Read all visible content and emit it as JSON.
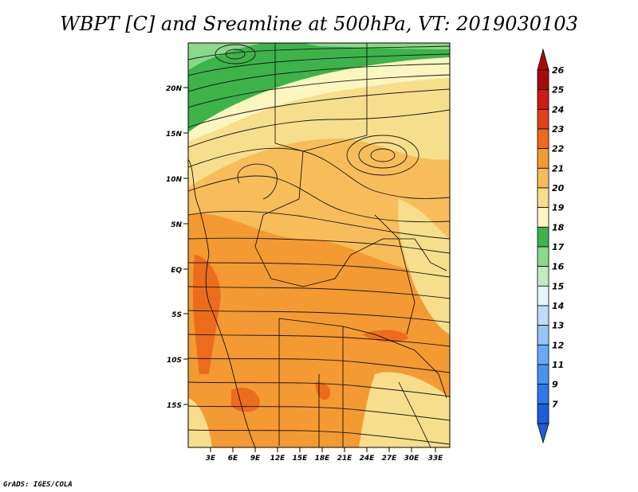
{
  "title": "WBPT [C] and Sreamline at 500hPa, VT: 2019030103",
  "credit": "GrADS: IGES/COLA",
  "map": {
    "lon_labels": [
      "3E",
      "6E",
      "9E",
      "12E",
      "15E",
      "18E",
      "21E",
      "24E",
      "27E",
      "30E",
      "33E"
    ],
    "lat_labels": [
      "20N",
      "15N",
      "10N",
      "5N",
      "EQ",
      "5S",
      "10S",
      "15S"
    ]
  },
  "colorbar": {
    "labels": [
      "7",
      "9",
      "11",
      "12",
      "13",
      "14",
      "15",
      "16",
      "17",
      "18",
      "19",
      "20",
      "21",
      "22",
      "23",
      "24",
      "25",
      "26"
    ],
    "colors": [
      "#1c5fd8",
      "#2e78e8",
      "#4a92f2",
      "#6aaaf6",
      "#94c4f8",
      "#c0dcfa",
      "#e6f4fb",
      "#c2ecbf",
      "#8ad88a",
      "#3db34a",
      "#fbf5c0",
      "#f7de8c",
      "#f6bd5a",
      "#f39a33",
      "#ec6c1e",
      "#e0401a",
      "#cc1c14",
      "#a80a0a"
    ]
  },
  "colors": {
    "green": "#3db34a",
    "light_green": "#8ad88a",
    "pale_yellow": "#fbf5c0",
    "light_orange": "#f7de8c",
    "orange": "#f6bd5a",
    "deep_orange": "#f39a33",
    "red_orange": "#ec6c1e"
  }
}
